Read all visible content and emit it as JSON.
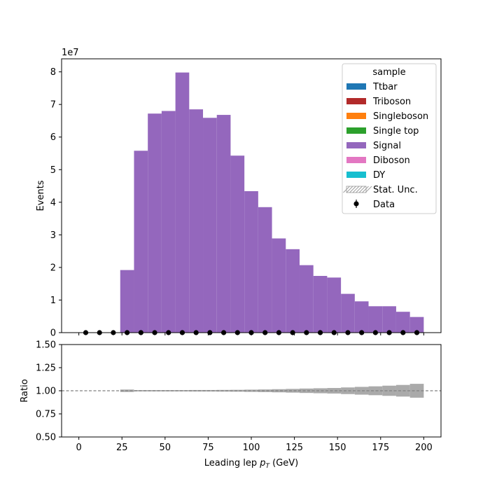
{
  "chart_data": [
    {
      "type": "bar",
      "subtype": "stacked-histogram",
      "ylabel": "Events",
      "y_scale_label": "1e7",
      "xlim": [
        -10,
        210
      ],
      "ylim": [
        0,
        8.4
      ],
      "yticks": [
        0,
        1,
        2,
        3,
        4,
        5,
        6,
        7,
        8
      ],
      "bin_edges": [
        24,
        32,
        40,
        48,
        56,
        64,
        72,
        80,
        88,
        96,
        104,
        112,
        120,
        128,
        136,
        144,
        152,
        160,
        168,
        176,
        184,
        192,
        200
      ],
      "series": [
        {
          "name": "Ttbar",
          "color": "#1f77b4",
          "values": [
            0,
            0,
            0,
            0,
            0,
            0,
            0,
            0,
            0,
            0,
            0,
            0,
            0,
            0,
            0,
            0,
            0,
            0,
            0,
            0,
            0,
            0
          ]
        },
        {
          "name": "Triboson",
          "color": "#b22a2a",
          "values": [
            0,
            0,
            0,
            0,
            0,
            0,
            0,
            0,
            0,
            0,
            0,
            0,
            0,
            0,
            0,
            0,
            0,
            0,
            0,
            0,
            0,
            0
          ]
        },
        {
          "name": "Singleboson",
          "color": "#ff7f0e",
          "values": [
            0,
            0,
            0,
            0,
            0,
            0,
            0,
            0,
            0,
            0,
            0,
            0,
            0,
            0,
            0,
            0,
            0,
            0,
            0,
            0,
            0,
            0
          ]
        },
        {
          "name": "Single top",
          "color": "#2ca02c",
          "values": [
            0,
            0,
            0,
            0,
            0,
            0,
            0,
            0,
            0,
            0,
            0,
            0,
            0,
            0,
            0,
            0,
            0,
            0,
            0,
            0,
            0,
            0
          ]
        },
        {
          "name": "Signal",
          "color": "#9467bd",
          "values": [
            1.92,
            5.58,
            6.72,
            6.8,
            7.98,
            6.85,
            6.59,
            6.68,
            5.43,
            4.34,
            3.85,
            2.89,
            2.56,
            2.07,
            1.74,
            1.69,
            1.19,
            0.96,
            0.81,
            0.81,
            0.64,
            0.48
          ]
        },
        {
          "name": "Diboson",
          "color": "#e377c2",
          "values": [
            0,
            0,
            0,
            0,
            0,
            0,
            0,
            0,
            0,
            0,
            0,
            0,
            0,
            0,
            0,
            0,
            0,
            0,
            0,
            0,
            0,
            0
          ]
        },
        {
          "name": "DY",
          "color": "#17becf",
          "values": [
            0,
            0,
            0,
            0,
            0,
            0,
            0,
            0,
            0,
            0,
            0,
            0,
            0,
            0,
            0,
            0,
            0,
            0,
            0,
            0,
            0,
            0
          ]
        }
      ],
      "stat_unc_label": "Stat. Unc.",
      "data": {
        "name": "Data",
        "x": [
          4,
          12,
          20,
          28,
          36,
          44,
          52,
          60,
          68,
          76,
          84,
          92,
          100,
          108,
          116,
          124,
          132,
          140,
          148,
          156,
          164,
          172,
          180,
          188,
          196
        ],
        "y": [
          0,
          0,
          0,
          0,
          0,
          0,
          0,
          0,
          0,
          0,
          0,
          0,
          0,
          0,
          0,
          0,
          0,
          0,
          0,
          0,
          0,
          0,
          0,
          0,
          0
        ]
      },
      "legend": {
        "title": "sample",
        "location": "upper right"
      }
    },
    {
      "type": "bar",
      "subtype": "ratio-band",
      "xlabel": "Leading lep $p_T$ (GeV)",
      "ylabel": "Ratio",
      "xlim": [
        -10,
        210
      ],
      "ylim": [
        0.5,
        1.5
      ],
      "yticks": [
        "0.50",
        "0.75",
        "1.00",
        "1.25",
        "1.50"
      ],
      "xticks": [
        "0",
        "25",
        "50",
        "75",
        "100",
        "125",
        "150",
        "175",
        "200"
      ],
      "reference_line": 1.0,
      "band_halfwidth": [
        0.013,
        0.007,
        0.007,
        0.007,
        0.007,
        0.008,
        0.008,
        0.009,
        0.01,
        0.012,
        0.014,
        0.017,
        0.02,
        0.024,
        0.027,
        0.03,
        0.036,
        0.042,
        0.048,
        0.055,
        0.063,
        0.075
      ]
    }
  ]
}
